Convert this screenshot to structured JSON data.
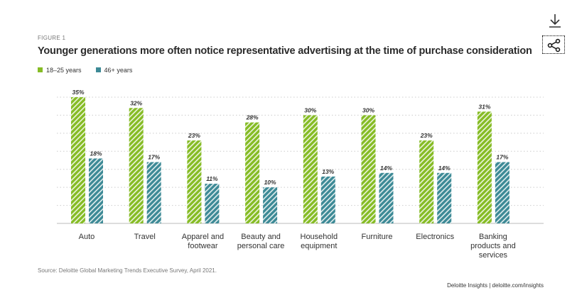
{
  "figure_label": "FIGURE 1",
  "source": "Source: Deloitte Global Marketing Trends Executive Survey, April 2021.",
  "credit": "Deloitte Insights | deloitte.com/insights",
  "toolbar": {
    "download_icon": "download-icon",
    "share_icon": "share-icon"
  },
  "colors": {
    "series1": "#86BC25",
    "series2": "#3D8A96"
  },
  "chart_data": {
    "type": "bar",
    "title": "Younger generations more often notice representative advertising at the time of purchase consideration",
    "categories": [
      "Auto",
      "Travel",
      "Apparel and footwear",
      "Beauty and personal care",
      "Household equipment",
      "Furniture",
      "Electronics",
      "Banking products and services"
    ],
    "category_lines": [
      [
        "Auto"
      ],
      [
        "Travel"
      ],
      [
        "Apparel and",
        "footwear"
      ],
      [
        "Beauty and",
        "personal care"
      ],
      [
        "Household",
        "equipment"
      ],
      [
        "Furniture"
      ],
      [
        "Electronics"
      ],
      [
        "Banking",
        "products and",
        "services"
      ]
    ],
    "series": [
      {
        "name": "18–25 years",
        "values": [
          35,
          32,
          23,
          28,
          30,
          30,
          23,
          31
        ]
      },
      {
        "name": "46+ years",
        "values": [
          18,
          17,
          11,
          10,
          13,
          14,
          14,
          17
        ]
      }
    ],
    "data_labels": [
      [
        "35%",
        "32%",
        "23%",
        "28%",
        "30%",
        "30%",
        "23%",
        "31%"
      ],
      [
        "18%",
        "17%",
        "11%",
        "10%",
        "13%",
        "14%",
        "14%",
        "17%"
      ]
    ],
    "ylim": [
      0,
      35
    ],
    "grid": true,
    "legend_position": "top-left",
    "xlabel": "",
    "ylabel": ""
  }
}
